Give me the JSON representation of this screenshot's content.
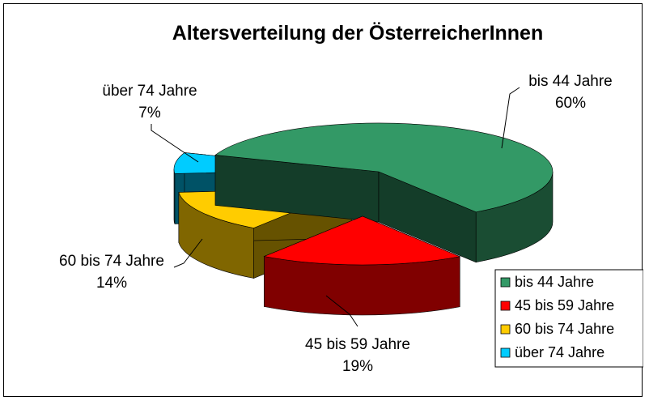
{
  "chart_data": {
    "type": "pie",
    "style": "3d-exploded",
    "title": "Altersverteilung der ÖsterreicherInnen",
    "categories": [
      "bis 44 Jahre",
      "45 bis 59 Jahre",
      "60 bis 74 Jahre",
      "über 74 Jahre"
    ],
    "values": [
      60,
      19,
      14,
      7
    ],
    "value_labels": [
      "60%",
      "19%",
      "14%",
      "7%"
    ],
    "colors": [
      "#339966",
      "#ff0000",
      "#ffcc00",
      "#00ccff"
    ],
    "legend_position": "bottom-right"
  }
}
